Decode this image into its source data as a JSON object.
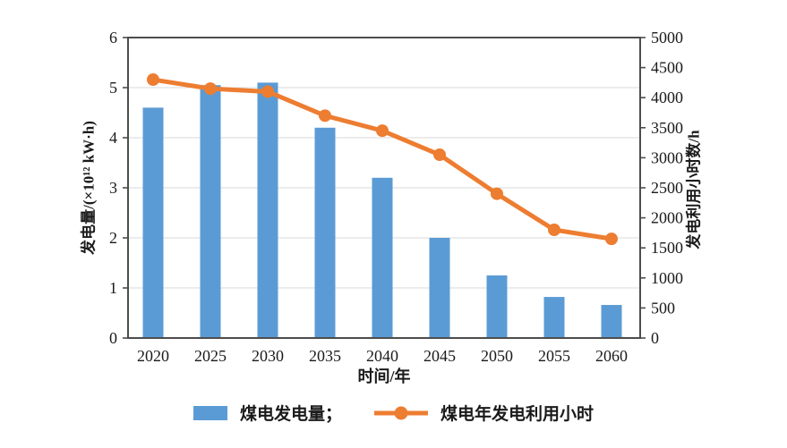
{
  "chart_data": {
    "type": "bar",
    "subtype": "bar+line dual-axis",
    "categories": [
      "2020",
      "2025",
      "2030",
      "2035",
      "2040",
      "2045",
      "2050",
      "2055",
      "2060"
    ],
    "series": [
      {
        "name": "煤电发电量",
        "type": "bar",
        "axis": "left",
        "values": [
          4.6,
          5.05,
          5.1,
          4.2,
          3.2,
          2.0,
          1.25,
          0.82,
          0.66
        ]
      },
      {
        "name": "煤电年发电利用小时",
        "type": "line",
        "axis": "right",
        "values": [
          4300,
          4150,
          4100,
          3700,
          3450,
          3050,
          2400,
          1800,
          1650
        ]
      }
    ],
    "title": "",
    "xlabel": "时间/年",
    "ylabel_left": "发电量/(×10¹² kW·h)",
    "ylabel_right": "发电利用小时数/h",
    "left_axis": {
      "min": 0,
      "max": 6,
      "ticks": [
        0,
        1,
        2,
        3,
        4,
        5,
        6
      ]
    },
    "right_axis": {
      "min": 0,
      "max": 5000,
      "ticks": [
        0,
        500,
        1000,
        1500,
        2000,
        2500,
        3000,
        3500,
        4000,
        4500,
        5000
      ]
    },
    "grid": true,
    "legend_position": "bottom"
  },
  "legend": {
    "bar_label": "煤电发电量；",
    "line_label": "煤电年发电利用小时"
  },
  "colors": {
    "bar": "#5B9BD5",
    "line": "#ED7D31",
    "axis": "#4d4d4d",
    "gridline": "#d9d9d9",
    "text": "#1a1a1a",
    "background": "#ffffff"
  }
}
